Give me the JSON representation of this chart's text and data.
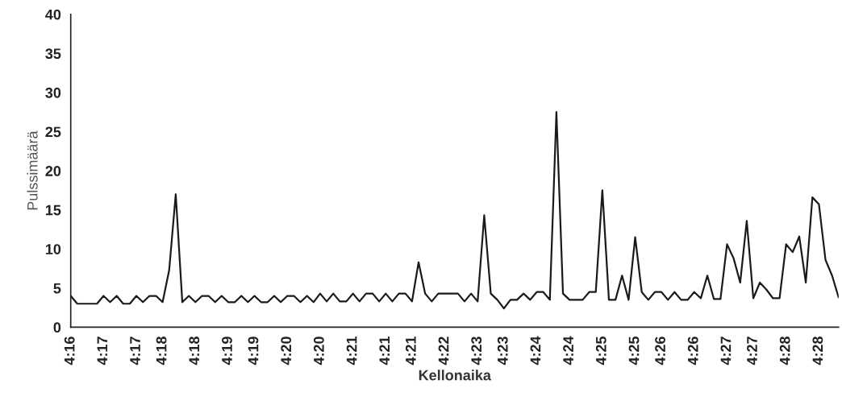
{
  "chart_data": {
    "type": "line",
    "xlabel": "Kellonaika",
    "ylabel": "Pulssimäärä",
    "categories": [
      "4:16",
      null,
      null,
      null,
      null,
      "4:17",
      null,
      null,
      null,
      null,
      "4:17",
      null,
      null,
      null,
      "4:18",
      null,
      null,
      null,
      null,
      "4:18",
      null,
      null,
      null,
      null,
      "4:19",
      null,
      null,
      null,
      "4:19",
      null,
      null,
      null,
      null,
      "4:20",
      null,
      null,
      null,
      null,
      "4:20",
      null,
      null,
      null,
      null,
      "4:21",
      null,
      null,
      null,
      null,
      "4:21",
      null,
      null,
      null,
      "4:21",
      null,
      null,
      null,
      null,
      "4:22",
      null,
      null,
      null,
      null,
      "4:23",
      null,
      null,
      null,
      "4:23",
      null,
      null,
      null,
      null,
      "4:24",
      null,
      null,
      null,
      null,
      "4:24",
      null,
      null,
      null,
      null,
      "4:25",
      null,
      null,
      null,
      null,
      "4:25",
      null,
      null,
      null,
      "4:26",
      null,
      null,
      null,
      null,
      "4:26",
      null,
      null,
      null,
      null,
      "4:27",
      null,
      null,
      null,
      "4:27",
      null,
      null,
      null,
      null,
      "4:28",
      null,
      null,
      null,
      null,
      "4:28",
      null,
      null,
      null
    ],
    "series": [
      {
        "color": "#1a1a1a",
        "values": [
          4,
          3,
          3,
          3,
          3,
          4,
          3.2,
          4,
          3,
          3,
          4,
          3.2,
          4,
          4,
          3.2,
          7.3,
          17,
          3.2,
          4,
          3.2,
          4,
          4,
          3.2,
          4,
          3.2,
          3.2,
          4,
          3.2,
          4,
          3.2,
          3.2,
          4,
          3.2,
          4,
          4,
          3.2,
          4,
          3.2,
          4.3,
          3.3,
          4.3,
          3.3,
          3.3,
          4.3,
          3.3,
          4.3,
          4.3,
          3.3,
          4.3,
          3.3,
          4.3,
          4.3,
          3.3,
          8.3,
          4.3,
          3.3,
          4.3,
          4.3,
          4.3,
          4.3,
          3.3,
          4.3,
          3.3,
          14.3,
          4.3,
          3.5,
          2.4,
          3.5,
          3.5,
          4.3,
          3.5,
          4.5,
          4.5,
          3.5,
          27.5,
          4.3,
          3.5,
          3.5,
          3.5,
          4.5,
          4.5,
          17.5,
          3.5,
          3.5,
          6.6,
          3.5,
          11.5,
          4.5,
          3.5,
          4.5,
          4.5,
          3.5,
          4.5,
          3.5,
          3.5,
          4.5,
          3.7,
          6.6,
          3.6,
          3.6,
          10.6,
          8.8,
          5.7,
          13.6,
          3.7,
          5.7,
          4.8,
          3.7,
          3.7,
          10.6,
          9.6,
          11.6,
          5.7,
          16.6,
          15.7,
          8.6,
          6.6,
          3.8
        ]
      }
    ],
    "ylim": [
      0,
      40
    ],
    "yticks": [
      0,
      5,
      10,
      15,
      20,
      25,
      30,
      35,
      40
    ],
    "grid": false,
    "legend": false,
    "marker": "none",
    "line_style": "solid"
  }
}
